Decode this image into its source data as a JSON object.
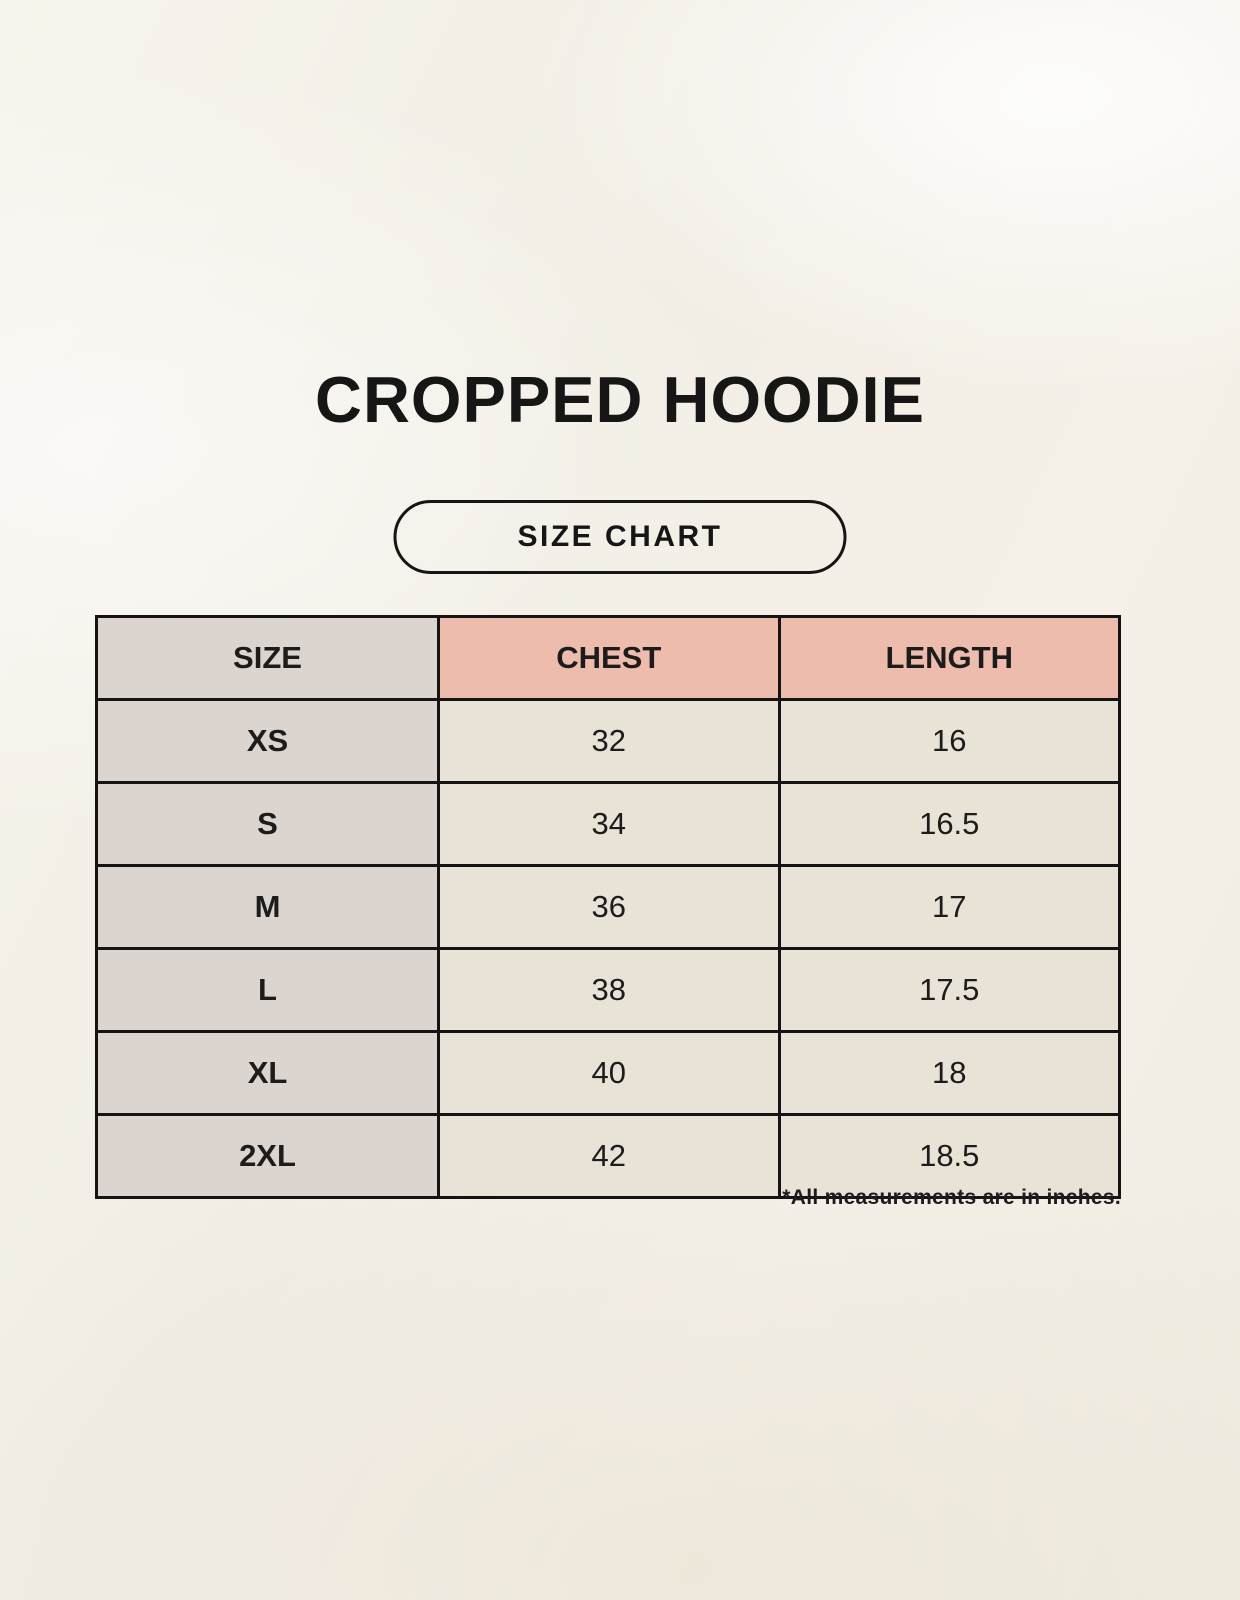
{
  "product": {
    "title": "CROPPED HOODIE"
  },
  "size_chart_button": {
    "label": "SIZE CHART"
  },
  "table": {
    "headers": {
      "size": "SIZE",
      "chest": "CHEST",
      "length": "LENGTH"
    },
    "rows": [
      {
        "size": "XS",
        "chest": "32",
        "length": "16"
      },
      {
        "size": "S",
        "chest": "34",
        "length": "16.5"
      },
      {
        "size": "M",
        "chest": "36",
        "length": "17"
      },
      {
        "size": "L",
        "chest": "38",
        "length": "17.5"
      },
      {
        "size": "XL",
        "chest": "40",
        "length": "18"
      },
      {
        "size": "2XL",
        "chest": "42",
        "length": "18.5"
      }
    ]
  },
  "footnote": "*All measurements are in inches.",
  "colors": {
    "background_cream": "#f3efe7",
    "header_pink": "#eebcad",
    "size_column_gray": "#dbd4cf",
    "value_cell_beige": "#e9e2d6",
    "border_black": "#141414",
    "text": "#1c1c1c"
  },
  "chart_data": {
    "type": "table",
    "title": "CROPPED HOODIE",
    "columns": [
      "SIZE",
      "CHEST",
      "LENGTH"
    ],
    "rows": [
      [
        "XS",
        32,
        16
      ],
      [
        "S",
        34,
        16.5
      ],
      [
        "M",
        36,
        17
      ],
      [
        "L",
        38,
        17.5
      ],
      [
        "XL",
        40,
        18
      ],
      [
        "2XL",
        42,
        18.5
      ]
    ],
    "units": "inches"
  }
}
